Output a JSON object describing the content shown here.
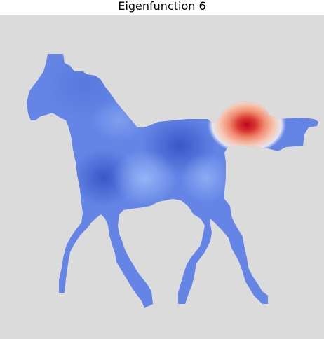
{
  "figure": {
    "title": "Eigenfunction 6"
  },
  "colors": {
    "background": "#dcdbdb",
    "silhouette_base": "#6586e6",
    "dark_lobe": "#3c5fcf",
    "light_lobe": "#8fb0f7",
    "hot_core": "#c4091f",
    "hot_mid": "#f08a6e",
    "hot_edge": "#f6d7c9"
  },
  "colormap": "coolwarm"
}
